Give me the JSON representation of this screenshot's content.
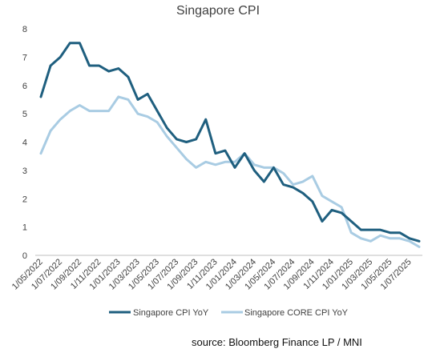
{
  "chart_data": {
    "type": "line",
    "title": "Singapore CPI",
    "xlabel": "",
    "ylabel": "",
    "ylim": [
      0,
      8
    ],
    "y_ticks": [
      "0",
      "1",
      "2",
      "3",
      "4",
      "5",
      "6",
      "7",
      "8"
    ],
    "grid": false,
    "legend_position": "bottom",
    "x": [
      "2022-05",
      "2022-06",
      "2022-07",
      "2022-08",
      "2022-09",
      "2022-10",
      "2022-11",
      "2022-12",
      "2023-01",
      "2023-02",
      "2023-03",
      "2023-04",
      "2023-05",
      "2023-06",
      "2023-07",
      "2023-08",
      "2023-09",
      "2023-10",
      "2023-11",
      "2023-12",
      "2024-01",
      "2024-02",
      "2024-03",
      "2024-04",
      "2024-05",
      "2024-06",
      "2024-07",
      "2024-08",
      "2024-09",
      "2024-10",
      "2024-11",
      "2024-12",
      "2025-01",
      "2025-02",
      "2025-03",
      "2025-04",
      "2025-05",
      "2025-06",
      "2025-07",
      "2025-08"
    ],
    "x_tick_labels": [
      "1/05/2022",
      "1/07/2022",
      "1/09/2022",
      "1/11/2022",
      "1/01/2023",
      "1/03/2023",
      "1/05/2023",
      "1/07/2023",
      "1/09/2023",
      "1/11/2023",
      "1/01/2024",
      "1/03/2024",
      "1/05/2024",
      "1/07/2024",
      "1/09/2024",
      "1/11/2024",
      "1/01/2025",
      "1/03/2025",
      "1/05/2025",
      "1/07/2025"
    ],
    "series": [
      {
        "name": "Singapore CPI YoY",
        "color": "#1f5f7f",
        "values": [
          5.6,
          6.7,
          7.0,
          7.5,
          7.5,
          6.7,
          6.7,
          6.5,
          6.6,
          6.3,
          5.5,
          5.7,
          5.1,
          4.5,
          4.1,
          4.0,
          4.1,
          4.8,
          3.6,
          3.7,
          3.1,
          3.6,
          3.0,
          2.6,
          3.1,
          2.5,
          2.4,
          2.2,
          1.9,
          1.2,
          1.6,
          1.5,
          1.2,
          0.9,
          0.9,
          0.9,
          0.8,
          0.8,
          0.6,
          0.5
        ]
      },
      {
        "name": "Singapore CORE CPI YoY",
        "color": "#a9cce3",
        "values": [
          3.6,
          4.4,
          4.8,
          5.1,
          5.3,
          5.1,
          5.1,
          5.1,
          5.6,
          5.5,
          5.0,
          4.9,
          4.7,
          4.2,
          3.8,
          3.4,
          3.1,
          3.3,
          3.2,
          3.3,
          3.3,
          3.6,
          3.2,
          3.1,
          3.1,
          2.9,
          2.5,
          2.6,
          2.8,
          2.1,
          1.9,
          1.7,
          0.8,
          0.6,
          0.5,
          0.7,
          0.6,
          0.6,
          0.5,
          0.3
        ]
      }
    ]
  },
  "source_note": "source: Bloomberg Finance LP / MNI"
}
